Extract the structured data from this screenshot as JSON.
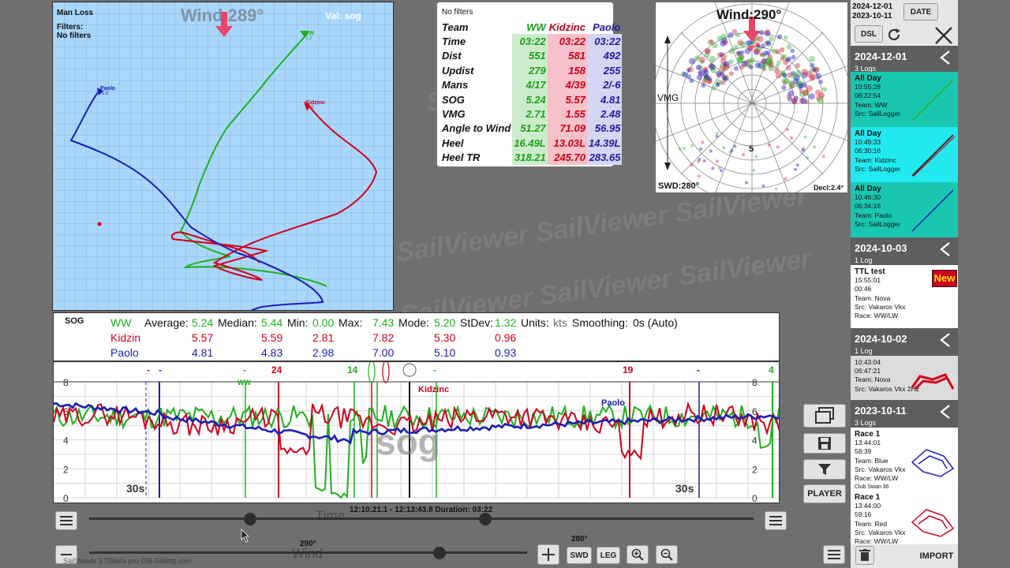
{
  "map": {
    "title": "Man Loss",
    "filters_label": "Filters:",
    "filters_value": "No filters",
    "wind": "Wind 289°",
    "val": "Val: sog",
    "labels": {
      "ww": "WW",
      "ww_val": "5.2",
      "kidzinc": "Kidzinc",
      "kidzinc_val": "5.5",
      "paolo": "Paolo",
      "paolo_val": "5.5"
    }
  },
  "stats": {
    "filter_note": "No filters",
    "columns": [
      "Team",
      "WW",
      "Kidzinc",
      "Paolo"
    ],
    "rows": [
      [
        "Time",
        "03:22",
        "03:22",
        "03:22"
      ],
      [
        "Dist",
        "551",
        "581",
        "492"
      ],
      [
        "Updist",
        "279",
        "158",
        "255"
      ],
      [
        "Mans",
        "4/17",
        "4/39",
        "2/-6"
      ],
      [
        "SOG",
        "5.24",
        "5.57",
        "4.81"
      ],
      [
        "VMG",
        "2.71",
        "1.55",
        "2.48"
      ],
      [
        "Angle to Wind",
        "51.27",
        "71.09",
        "56.95"
      ],
      [
        "Heel",
        "16.49L",
        "13.03L",
        "14.39L"
      ],
      [
        "Heel TR",
        "318.21",
        "245.70",
        "283.65"
      ]
    ]
  },
  "polar": {
    "wind": "Wind:290°",
    "vmg": "VMG",
    "five": "5",
    "swd": "SWD:280°",
    "decl": "Decl:2.4°"
  },
  "side": {
    "date_top": "2024-12-01",
    "date_bottom": "2023-10-11",
    "date_btn": "DATE",
    "dsl_btn": "DSL",
    "groups": [
      {
        "date": "2024-12-01",
        "count": "3 Logs"
      },
      {
        "date": "2024-10-03",
        "count": "1 Log"
      },
      {
        "date": "2024-10-02",
        "count": "1 Log"
      },
      {
        "date": "2023-10-11",
        "count": "3 Logs"
      }
    ],
    "cards": [
      {
        "title": "All Day",
        "l1": "10:55:28",
        "l2": "06:22:54",
        "l3": "Team: WW",
        "l4": "Src: SailLogger"
      },
      {
        "title": "All Day",
        "l1": "10:49:33",
        "l2": "06:30:16",
        "l3": "Team: Kidzinc",
        "l4": "Src: SailLogger"
      },
      {
        "title": "All Day",
        "l1": "10:46:30",
        "l2": "06:34:16",
        "l3": "Team: Paolo",
        "l4": "Src: SailLogger"
      },
      {
        "title": "TTL test",
        "l1": "15:55:01",
        "l2": "00:46",
        "l3": "Team: Nova",
        "l4": "Src: Vakaros Vkx",
        "l5": "Race: WW/LW",
        "badge": "New"
      },
      {
        "title": "",
        "l1": "10:43:04",
        "l2": "06:47:21",
        "l3": "Team: Nova",
        "l4": "Src: Vakaros Vkx 2Hz"
      },
      {
        "title": "Race 1",
        "l1": "13:44:01",
        "l2": "58:39",
        "l3": "Team: Blue",
        "l4": "Src: Vakaros Vkx",
        "l5": "Race: WW/LW",
        "l6": "Club Swan 36"
      },
      {
        "title": "Race 1",
        "l1": "13:44:00",
        "l2": "59:16",
        "l3": "Team: Red",
        "l4": "Src: Vakaros Vkx",
        "l5": "Race: WW/LW"
      }
    ],
    "import_btn": "IMPORT",
    "player_btn": "PLAYER"
  },
  "sog": {
    "label": "SOG",
    "head": {
      "average": "Average:",
      "median": "Median:",
      "min": "Min:",
      "max": "Max:",
      "mode": "Mode:",
      "stdev": "StDev:",
      "units": "Units:",
      "units_val": "kts",
      "smoothing": "Smoothing:",
      "smoothing_val": "0s (Auto)"
    },
    "rows": [
      {
        "name": "WW",
        "avg": "5.24",
        "med": "5.44",
        "min": "0.00",
        "max": "7.43",
        "mode": "5.20",
        "std": "1.32"
      },
      {
        "name": "Kidzin",
        "avg": "5.57",
        "med": "5.59",
        "min": "2.81",
        "max": "7.82",
        "mode": "5.30",
        "std": "0.96"
      },
      {
        "name": "Paolo",
        "avg": "4.81",
        "med": "4.83",
        "min": "2.98",
        "max": "7.00",
        "mode": "5.10",
        "std": "0.93"
      }
    ]
  },
  "graph": {
    "watermark": "sog",
    "left_30s": "30s",
    "right_30s": "30s",
    "y_ticks": [
      "8",
      "6",
      "4",
      "2",
      "0"
    ],
    "top_marks": [
      "-",
      "-",
      "24",
      "-",
      "14",
      "-",
      "19",
      "-",
      "4"
    ],
    "series_labels": {
      "ww": "WW",
      "kidzinc": "Kidzinc",
      "paolo": "Paolo"
    }
  },
  "timeline": {
    "range": "12:10:21.1 - 12:13:43.8 Duration: 03:22",
    "time_label": "Time",
    "wind_label": "Wind",
    "wind_left": "290°",
    "wind_right": "280°",
    "footer": "SailViewer 3.70beta pro ©IB-Sailing.com",
    "swd_btn": "SWD",
    "leg_btn": "LEG"
  },
  "colors": {
    "ww": "#1fb01f",
    "kidzinc": "#d0001c",
    "paolo": "#1c1cb8",
    "wind_arrow": "#e8456a"
  }
}
